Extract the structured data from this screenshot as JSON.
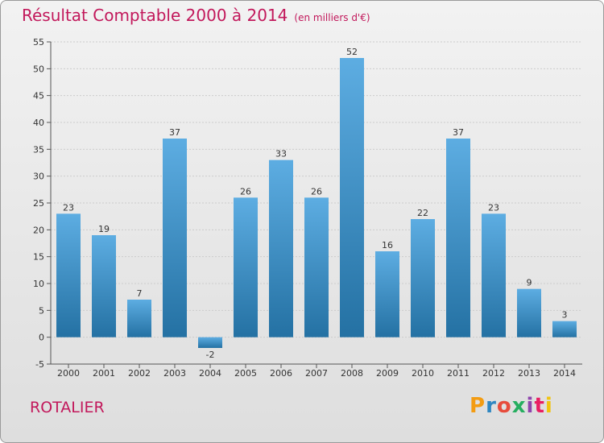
{
  "title": "Résultat Comptable 2000 à 2014",
  "subtitle": "(en milliers d'€)",
  "town": "ROTALIER",
  "logo": {
    "text": "Proxiti",
    "colors": [
      "#f39c12",
      "#2e86c1",
      "#e74c3c",
      "#27ae60",
      "#8e44ad",
      "#e91e63",
      "#f1c40f"
    ]
  },
  "colors": {
    "accent": "#c2185b",
    "bar_light": "#5dade2",
    "bar_dark": "#2471a3",
    "grid": "#cccccc",
    "axis": "#555555"
  },
  "chart_data": {
    "type": "bar",
    "title": "Résultat Comptable 2000 à 2014",
    "xlabel": "",
    "ylabel": "",
    "ylim": [
      -5,
      55
    ],
    "yticks": [
      -5,
      0,
      5,
      10,
      15,
      20,
      25,
      30,
      35,
      40,
      45,
      50,
      55
    ],
    "grid": true,
    "categories": [
      "2000",
      "2001",
      "2002",
      "2003",
      "2004",
      "2005",
      "2006",
      "2007",
      "2008",
      "2009",
      "2010",
      "2011",
      "2012",
      "2013",
      "2014"
    ],
    "values": [
      23,
      19,
      7,
      37,
      -2,
      26,
      33,
      26,
      52,
      16,
      22,
      37,
      23,
      9,
      3
    ]
  }
}
